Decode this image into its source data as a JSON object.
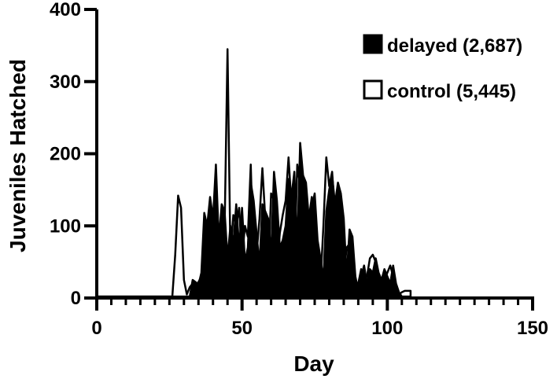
{
  "chart_data": {
    "type": "area",
    "xlabel": "Day",
    "ylabel": "Juveniles Hatched",
    "xlim": [
      0,
      150
    ],
    "ylim": [
      0,
      400
    ],
    "x_ticks": [
      "0",
      "50",
      "100",
      "150"
    ],
    "y_ticks": [
      "0",
      "100",
      "200",
      "300",
      "400"
    ],
    "grid": false,
    "legend_position": "top-right",
    "series": [
      {
        "name": "delayed (2,687)",
        "color": "#000000",
        "fill": "#000000",
        "x": [
          0,
          27,
          28,
          29,
          30,
          31,
          32,
          33,
          34,
          35,
          36,
          37,
          38,
          39,
          40,
          41,
          42,
          43,
          44,
          45,
          46,
          47,
          48,
          49,
          50,
          51,
          52,
          53,
          54,
          55,
          56,
          57,
          58,
          59,
          60,
          61,
          62,
          63,
          64,
          65,
          66,
          67,
          68,
          69,
          70,
          71,
          72,
          73,
          74,
          75,
          76,
          77,
          78,
          79,
          80,
          81,
          82,
          83,
          84,
          85,
          86,
          87,
          88,
          89,
          90,
          91,
          92,
          93,
          94,
          95,
          96,
          97,
          98,
          99,
          100,
          101,
          102,
          103,
          104,
          105,
          106,
          107,
          108
        ],
        "values": [
          2,
          2,
          2,
          2,
          2,
          2,
          2,
          25,
          22,
          18,
          35,
          118,
          100,
          140,
          110,
          185,
          80,
          130,
          120,
          55,
          100,
          75,
          130,
          70,
          125,
          50,
          70,
          160,
          135,
          90,
          45,
          130,
          120,
          110,
          60,
          175,
          135,
          70,
          80,
          100,
          165,
          140,
          175,
          70,
          215,
          170,
          160,
          110,
          125,
          145,
          80,
          55,
          25,
          120,
          150,
          170,
          130,
          160,
          145,
          110,
          30,
          95,
          85,
          30,
          10,
          30,
          45,
          20,
          40,
          35,
          55,
          35,
          25,
          40,
          30,
          20,
          45,
          20,
          8,
          2,
          2,
          2,
          2
        ]
      },
      {
        "name": "control (5,445)",
        "color": "#000000",
        "fill": "#ffffff",
        "x": [
          0,
          26,
          27,
          28,
          29,
          30,
          31,
          32,
          33,
          34,
          35,
          36,
          37,
          38,
          39,
          40,
          41,
          42,
          43,
          44,
          45,
          46,
          47,
          48,
          49,
          50,
          51,
          52,
          53,
          54,
          55,
          56,
          57,
          58,
          59,
          60,
          61,
          62,
          63,
          64,
          65,
          66,
          67,
          68,
          69,
          70,
          71,
          72,
          73,
          74,
          75,
          76,
          77,
          78,
          79,
          80,
          81,
          82,
          83,
          84,
          85,
          86,
          87,
          88,
          89,
          90,
          91,
          92,
          93,
          94,
          95,
          96,
          97,
          98,
          99,
          100,
          101,
          102,
          103,
          104,
          105,
          106,
          107,
          108
        ],
        "values": [
          2,
          2,
          60,
          142,
          125,
          25,
          5,
          15,
          20,
          18,
          22,
          30,
          80,
          95,
          125,
          100,
          150,
          75,
          110,
          95,
          345,
          60,
          115,
          100,
          125,
          55,
          100,
          85,
          185,
          40,
          60,
          110,
          180,
          110,
          35,
          145,
          135,
          40,
          90,
          115,
          135,
          195,
          130,
          40,
          185,
          155,
          170,
          95,
          110,
          140,
          70,
          40,
          20,
          100,
          195,
          155,
          175,
          115,
          95,
          40,
          30,
          70,
          75,
          20,
          5,
          20,
          40,
          25,
          30,
          55,
          60,
          50,
          30,
          20,
          25,
          35,
          45,
          30,
          5,
          5,
          8,
          10,
          10,
          10
        ]
      }
    ]
  }
}
